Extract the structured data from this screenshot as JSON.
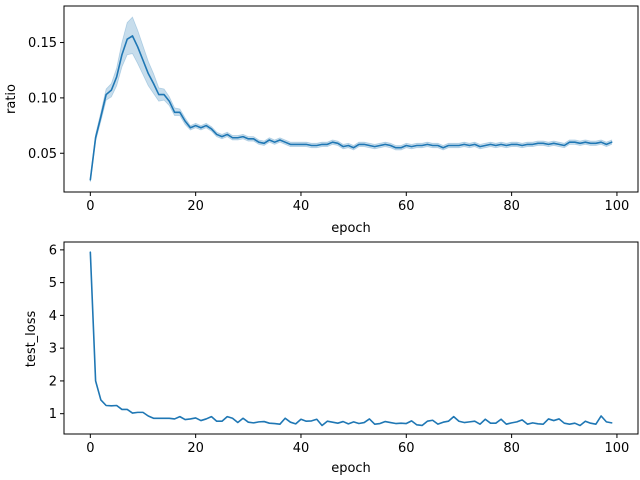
{
  "chart_data": [
    {
      "type": "line",
      "xlabel": "epoch",
      "ylabel": "ratio",
      "xlim": [
        -5,
        104
      ],
      "ylim": [
        0.015,
        0.183
      ],
      "xticks": [
        0,
        20,
        40,
        60,
        80,
        100
      ],
      "yticks": [
        0.05,
        0.1,
        0.15
      ],
      "ytick_labels": [
        "0.05",
        "0.10",
        "0.15"
      ],
      "grid": false,
      "color": "#1f77b4",
      "band_alpha": 0.25,
      "x_start": 0,
      "y": [
        0.026,
        0.064,
        0.083,
        0.103,
        0.107,
        0.119,
        0.139,
        0.153,
        0.156,
        0.146,
        0.134,
        0.122,
        0.113,
        0.103,
        0.103,
        0.097,
        0.087,
        0.087,
        0.079,
        0.073,
        0.075,
        0.073,
        0.075,
        0.072,
        0.067,
        0.065,
        0.067,
        0.064,
        0.064,
        0.065,
        0.063,
        0.063,
        0.06,
        0.059,
        0.062,
        0.06,
        0.062,
        0.06,
        0.058,
        0.058,
        0.058,
        0.058,
        0.057,
        0.057,
        0.058,
        0.058,
        0.06,
        0.059,
        0.056,
        0.057,
        0.055,
        0.058,
        0.058,
        0.057,
        0.056,
        0.057,
        0.058,
        0.057,
        0.055,
        0.055,
        0.057,
        0.056,
        0.057,
        0.057,
        0.058,
        0.057,
        0.057,
        0.055,
        0.057,
        0.057,
        0.057,
        0.058,
        0.057,
        0.058,
        0.056,
        0.057,
        0.058,
        0.057,
        0.058,
        0.057,
        0.058,
        0.058,
        0.057,
        0.058,
        0.058,
        0.059,
        0.059,
        0.058,
        0.059,
        0.058,
        0.057,
        0.06,
        0.06,
        0.059,
        0.06,
        0.059,
        0.059,
        0.06,
        0.058,
        0.06
      ],
      "lower": [
        0.024,
        0.061,
        0.079,
        0.098,
        0.101,
        0.111,
        0.128,
        0.139,
        0.14,
        0.131,
        0.121,
        0.111,
        0.104,
        0.097,
        0.098,
        0.093,
        0.084,
        0.084,
        0.076,
        0.071,
        0.073,
        0.071,
        0.073,
        0.07,
        0.065,
        0.063,
        0.065,
        0.062,
        0.062,
        0.063,
        0.061,
        0.061,
        0.058,
        0.057,
        0.06,
        0.058,
        0.06,
        0.058,
        0.056,
        0.056,
        0.056,
        0.056,
        0.055,
        0.055,
        0.056,
        0.056,
        0.058,
        0.057,
        0.054,
        0.055,
        0.053,
        0.056,
        0.056,
        0.055,
        0.054,
        0.055,
        0.056,
        0.055,
        0.053,
        0.053,
        0.055,
        0.054,
        0.055,
        0.055,
        0.056,
        0.055,
        0.055,
        0.053,
        0.055,
        0.055,
        0.055,
        0.056,
        0.055,
        0.056,
        0.054,
        0.055,
        0.056,
        0.055,
        0.056,
        0.055,
        0.056,
        0.056,
        0.055,
        0.056,
        0.056,
        0.057,
        0.057,
        0.056,
        0.057,
        0.056,
        0.055,
        0.058,
        0.058,
        0.057,
        0.058,
        0.057,
        0.057,
        0.058,
        0.056,
        0.058
      ],
      "upper": [
        0.028,
        0.067,
        0.087,
        0.108,
        0.113,
        0.127,
        0.15,
        0.168,
        0.173,
        0.161,
        0.147,
        0.133,
        0.122,
        0.109,
        0.108,
        0.101,
        0.091,
        0.09,
        0.082,
        0.075,
        0.077,
        0.075,
        0.077,
        0.074,
        0.069,
        0.067,
        0.069,
        0.066,
        0.066,
        0.067,
        0.065,
        0.065,
        0.062,
        0.061,
        0.064,
        0.062,
        0.064,
        0.062,
        0.06,
        0.06,
        0.06,
        0.06,
        0.059,
        0.059,
        0.06,
        0.06,
        0.062,
        0.061,
        0.058,
        0.059,
        0.057,
        0.06,
        0.06,
        0.059,
        0.058,
        0.059,
        0.06,
        0.059,
        0.057,
        0.057,
        0.059,
        0.058,
        0.059,
        0.059,
        0.06,
        0.059,
        0.059,
        0.057,
        0.059,
        0.059,
        0.059,
        0.06,
        0.059,
        0.06,
        0.058,
        0.059,
        0.06,
        0.059,
        0.06,
        0.059,
        0.06,
        0.06,
        0.059,
        0.06,
        0.06,
        0.061,
        0.061,
        0.06,
        0.061,
        0.06,
        0.059,
        0.062,
        0.062,
        0.061,
        0.062,
        0.061,
        0.061,
        0.062,
        0.06,
        0.062
      ]
    },
    {
      "type": "line",
      "xlabel": "epoch",
      "ylabel": "test_loss",
      "xlim": [
        -5,
        104
      ],
      "ylim": [
        0.38,
        6.24
      ],
      "xticks": [
        0,
        20,
        40,
        60,
        80,
        100
      ],
      "yticks": [
        1,
        2,
        3,
        4,
        5,
        6
      ],
      "ytick_labels": [
        "1",
        "2",
        "3",
        "4",
        "5",
        "6"
      ],
      "grid": false,
      "color": "#1f77b4",
      "x_start": 0,
      "y": [
        5.93,
        2.0,
        1.42,
        1.25,
        1.24,
        1.25,
        1.13,
        1.13,
        1.02,
        1.04,
        1.04,
        0.93,
        0.86,
        0.86,
        0.86,
        0.86,
        0.84,
        0.91,
        0.82,
        0.84,
        0.87,
        0.79,
        0.84,
        0.91,
        0.77,
        0.77,
        0.91,
        0.86,
        0.73,
        0.86,
        0.74,
        0.72,
        0.75,
        0.76,
        0.71,
        0.7,
        0.68,
        0.86,
        0.74,
        0.69,
        0.83,
        0.77,
        0.78,
        0.83,
        0.64,
        0.77,
        0.74,
        0.71,
        0.76,
        0.69,
        0.75,
        0.7,
        0.73,
        0.84,
        0.68,
        0.7,
        0.76,
        0.73,
        0.7,
        0.71,
        0.7,
        0.78,
        0.66,
        0.64,
        0.77,
        0.8,
        0.68,
        0.74,
        0.77,
        0.91,
        0.77,
        0.73,
        0.75,
        0.77,
        0.68,
        0.83,
        0.71,
        0.71,
        0.83,
        0.68,
        0.72,
        0.75,
        0.81,
        0.68,
        0.72,
        0.69,
        0.68,
        0.84,
        0.79,
        0.84,
        0.71,
        0.68,
        0.71,
        0.64,
        0.77,
        0.71,
        0.68,
        0.93,
        0.75,
        0.72
      ]
    }
  ]
}
